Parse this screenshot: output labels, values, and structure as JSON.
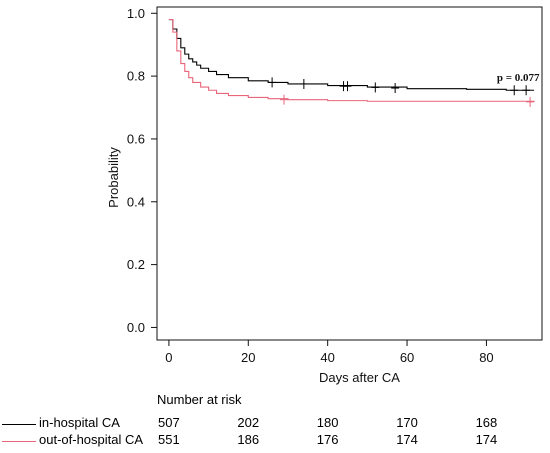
{
  "chart_data": {
    "type": "line",
    "subtype": "kaplan-meier",
    "xlabel": "Days  after  CA",
    "ylabel": "Probability",
    "xlim": [
      -3,
      94
    ],
    "ylim": [
      -0.04,
      1.02
    ],
    "xticks": [
      0,
      20,
      40,
      60,
      80
    ],
    "yticks": [
      0.0,
      0.2,
      0.4,
      0.6,
      0.8,
      1.0
    ],
    "grid": false,
    "annotation": {
      "text": "p = 0.077",
      "x": 88,
      "y": 0.785
    },
    "series": [
      {
        "name": "in-hospital CA",
        "color": "#000000",
        "steps": [
          [
            0,
            0.98
          ],
          [
            1,
            0.95
          ],
          [
            2,
            0.92
          ],
          [
            3,
            0.89
          ],
          [
            4,
            0.87
          ],
          [
            5,
            0.855
          ],
          [
            6,
            0.845
          ],
          [
            7,
            0.835
          ],
          [
            8,
            0.825
          ],
          [
            10,
            0.815
          ],
          [
            12,
            0.805
          ],
          [
            15,
            0.795
          ],
          [
            20,
            0.785
          ],
          [
            25,
            0.78
          ],
          [
            30,
            0.775
          ],
          [
            40,
            0.77
          ],
          [
            50,
            0.765
          ],
          [
            60,
            0.76
          ],
          [
            75,
            0.758
          ],
          [
            85,
            0.755
          ],
          [
            92,
            0.755
          ]
        ],
        "censored": [
          [
            26,
            0.78
          ],
          [
            34,
            0.775
          ],
          [
            44,
            0.768
          ],
          [
            45,
            0.768
          ],
          [
            52,
            0.764
          ],
          [
            57,
            0.762
          ],
          [
            87,
            0.755
          ],
          [
            90,
            0.755
          ]
        ]
      },
      {
        "name": "out-of-hospital CA",
        "color": "#e8657a",
        "steps": [
          [
            0,
            0.98
          ],
          [
            1,
            0.94
          ],
          [
            2,
            0.88
          ],
          [
            3,
            0.84
          ],
          [
            4,
            0.815
          ],
          [
            5,
            0.795
          ],
          [
            6,
            0.78
          ],
          [
            8,
            0.765
          ],
          [
            10,
            0.755
          ],
          [
            12,
            0.745
          ],
          [
            15,
            0.738
          ],
          [
            20,
            0.732
          ],
          [
            25,
            0.728
          ],
          [
            30,
            0.725
          ],
          [
            40,
            0.722
          ],
          [
            50,
            0.72
          ],
          [
            60,
            0.72
          ],
          [
            92,
            0.718
          ]
        ],
        "censored": [
          [
            29,
            0.725
          ],
          [
            91,
            0.718
          ]
        ]
      }
    ]
  },
  "risk_table": {
    "title": "Number at risk",
    "time_points": [
      0,
      20,
      40,
      60,
      80
    ],
    "rows": [
      {
        "label": "in-hospital CA",
        "color": "#000000",
        "values": [
          "507",
          "202",
          "180",
          "170",
          "168"
        ]
      },
      {
        "label": "out-of-hospital CA",
        "color": "#e8657a",
        "values": [
          "551",
          "186",
          "176",
          "174",
          "174"
        ]
      }
    ]
  }
}
